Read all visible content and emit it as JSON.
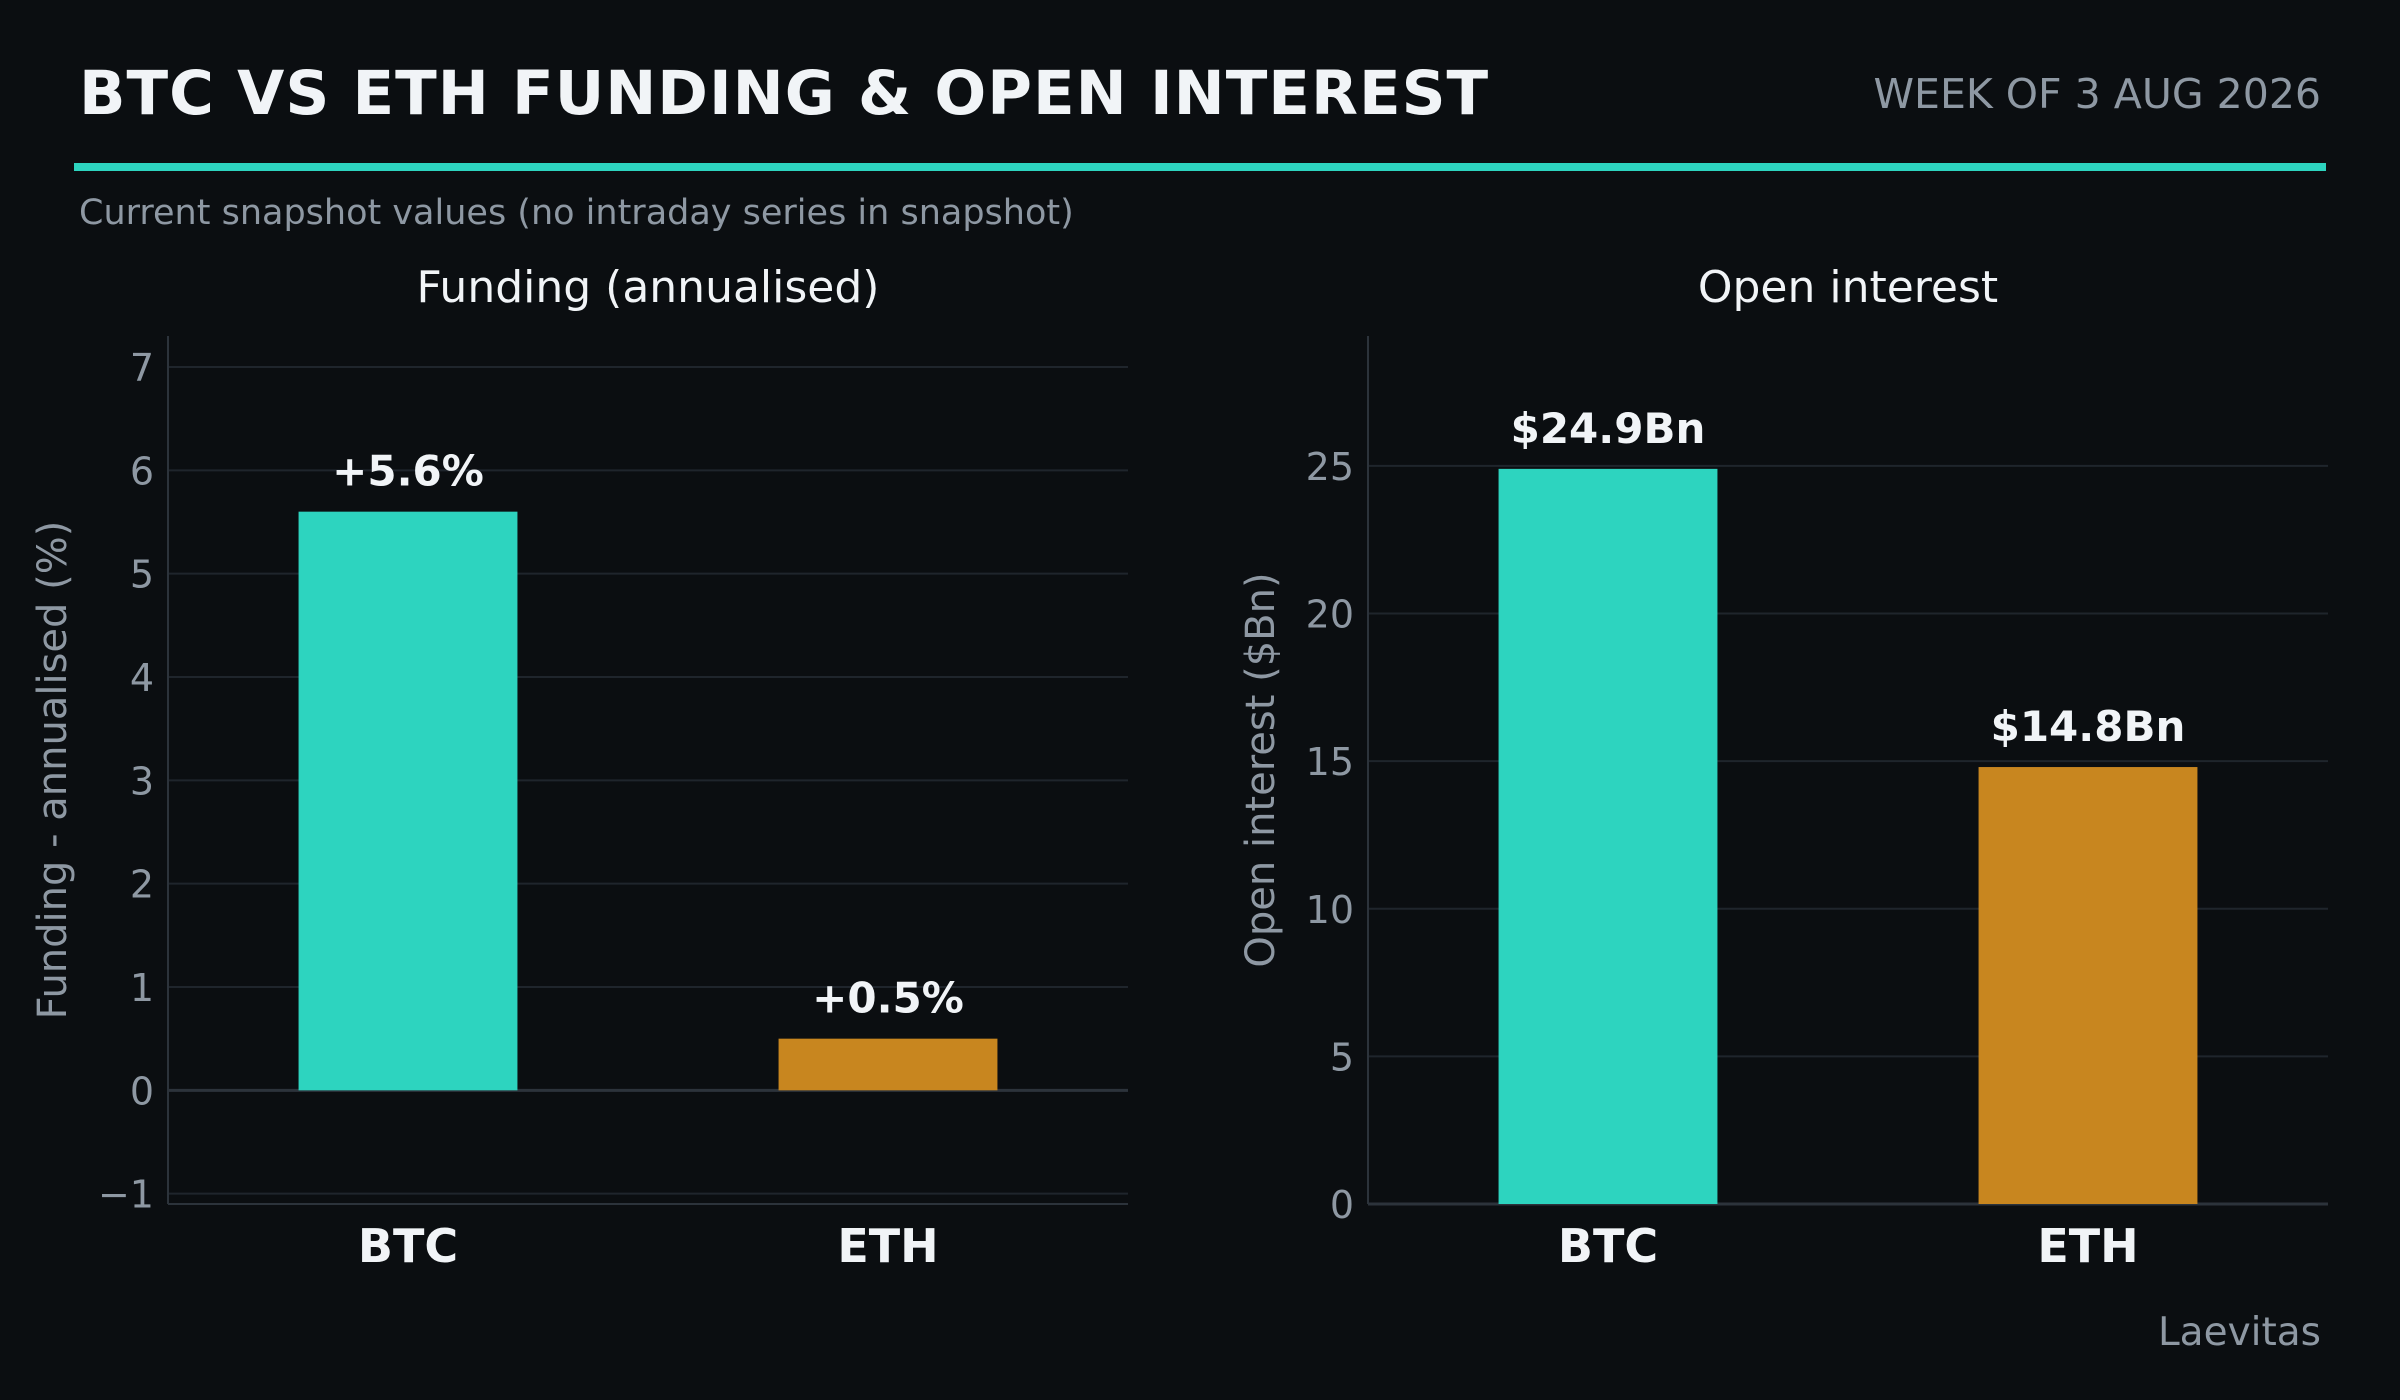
{
  "header": {
    "title": "BTC VS ETH FUNDING & OPEN INTEREST",
    "week": "WEEK OF 3 AUG 2026",
    "subtitle": "Current snapshot values (no intraday series in snapshot)"
  },
  "footer": {
    "source": "Laevitas"
  },
  "colors": {
    "background": "#0b0e11",
    "accent": "#2dd4bf",
    "btc": "#2dd4bf",
    "eth": "#c8861f",
    "grid": "#1f252c",
    "axis_text": "#8e98a3",
    "label_text": "#f1f4f7"
  },
  "chart_data": [
    {
      "type": "bar",
      "title": "Funding (annualised)",
      "xlabel": "",
      "ylabel": "Funding - annualised (%)",
      "categories": [
        "BTC",
        "ETH"
      ],
      "values": [
        5.6,
        0.5
      ],
      "data_labels": [
        "+5.6%",
        "+0.5%"
      ],
      "colors": [
        "#2dd4bf",
        "#c8861f"
      ],
      "ylim": [
        -1.1,
        7.3
      ],
      "yticks": [
        -1,
        0,
        1,
        2,
        3,
        4,
        5,
        6,
        7
      ],
      "ytick_labels": [
        "−1",
        "0",
        "1",
        "2",
        "3",
        "4",
        "5",
        "6",
        "7"
      ],
      "grid": true
    },
    {
      "type": "bar",
      "title": "Open interest",
      "xlabel": "",
      "ylabel": "Open interest ($Bn)",
      "categories": [
        "BTC",
        "ETH"
      ],
      "values": [
        24.9,
        14.8
      ],
      "data_labels": [
        "$24.9Bn",
        "$14.8Bn"
      ],
      "colors": [
        "#2dd4bf",
        "#c8861f"
      ],
      "ylim": [
        0,
        29.4
      ],
      "yticks": [
        0,
        5,
        10,
        15,
        20,
        25
      ],
      "ytick_labels": [
        "0",
        "5",
        "10",
        "15",
        "20",
        "25"
      ],
      "grid": true
    }
  ]
}
